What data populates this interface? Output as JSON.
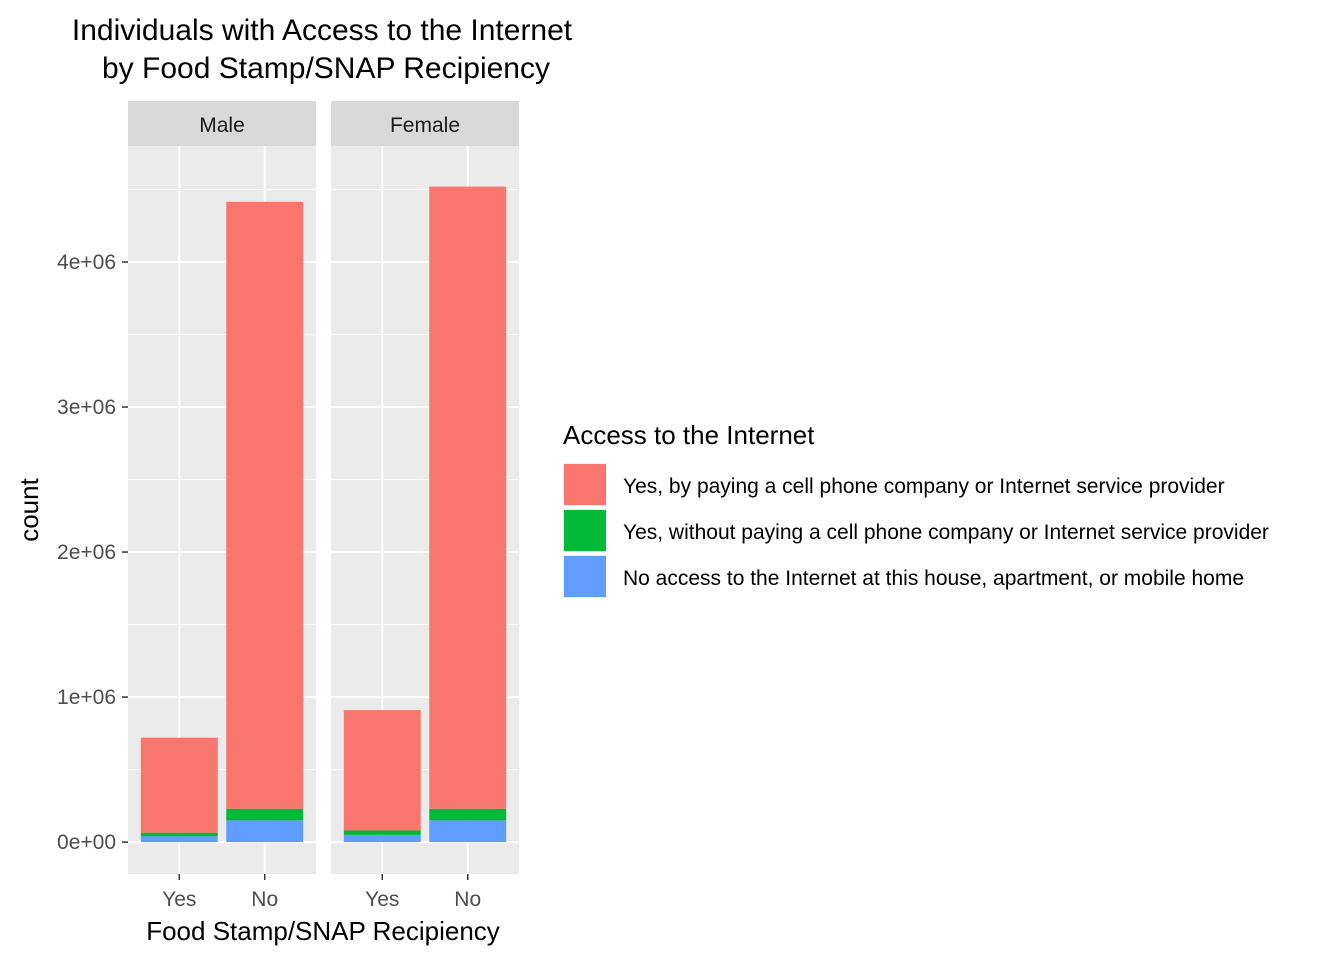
{
  "chart_data": {
    "type": "bar",
    "stacked": true,
    "title": [
      "Individuals with Access to the Internet",
      "by Food Stamp/SNAP Recipiency"
    ],
    "xlabel": "Food Stamp/SNAP Recipiency",
    "ylabel": "count",
    "ylim": [
      -220000,
      4800000
    ],
    "yticks": [
      0,
      1000000,
      2000000,
      3000000,
      4000000
    ],
    "ytick_labels": [
      "0e+00",
      "1e+06",
      "2e+06",
      "3e+06",
      "4e+06"
    ],
    "categories": [
      "Yes",
      "No"
    ],
    "facets": [
      "Male",
      "Female"
    ],
    "grid": true,
    "legend": {
      "title": "Access to the Internet",
      "position": "right"
    },
    "series": [
      {
        "name": "No access to the Internet at this house, apartment, or mobile home",
        "color": "#619CFF",
        "values": {
          "Male": [
            40000,
            150000
          ],
          "Female": [
            50000,
            150000
          ]
        }
      },
      {
        "name": "Yes, without paying a cell phone company or Internet service provider",
        "color": "#00BA38",
        "values": {
          "Male": [
            25000,
            80000
          ],
          "Female": [
            30000,
            80000
          ]
        }
      },
      {
        "name": "Yes, by paying a cell phone company or Internet service provider",
        "color": "#F8766D",
        "values": {
          "Male": [
            655000,
            4185000
          ],
          "Female": [
            830000,
            4290000
          ]
        }
      }
    ],
    "legend_order": [
      2,
      1,
      0
    ]
  }
}
